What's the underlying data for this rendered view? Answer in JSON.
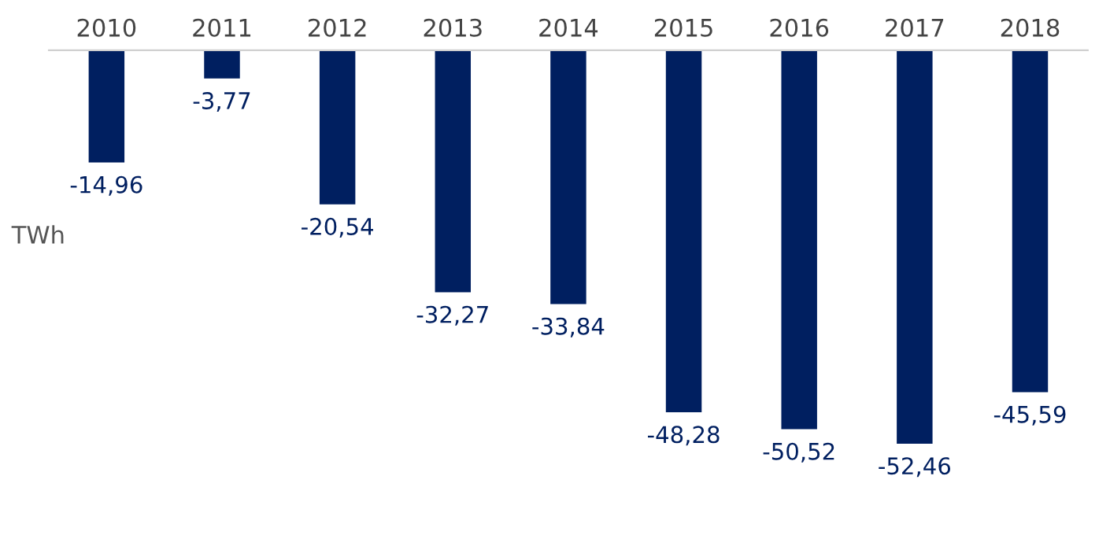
{
  "chart_data": {
    "type": "bar",
    "ylabel": "TWh",
    "categories": [
      "2010",
      "2011",
      "2012",
      "2013",
      "2014",
      "2015",
      "2016",
      "2017",
      "2018"
    ],
    "values": [
      -14.96,
      -3.77,
      -20.54,
      -32.27,
      -33.84,
      -48.28,
      -50.52,
      -52.46,
      -45.59
    ],
    "value_labels": [
      "-14,96",
      "-3,77",
      "-20,54",
      "-32,27",
      "-33,84",
      "-48,28",
      "-50,52",
      "-52,46",
      "-45,59"
    ],
    "color": "#001f60",
    "grid": false,
    "legend": false
  }
}
